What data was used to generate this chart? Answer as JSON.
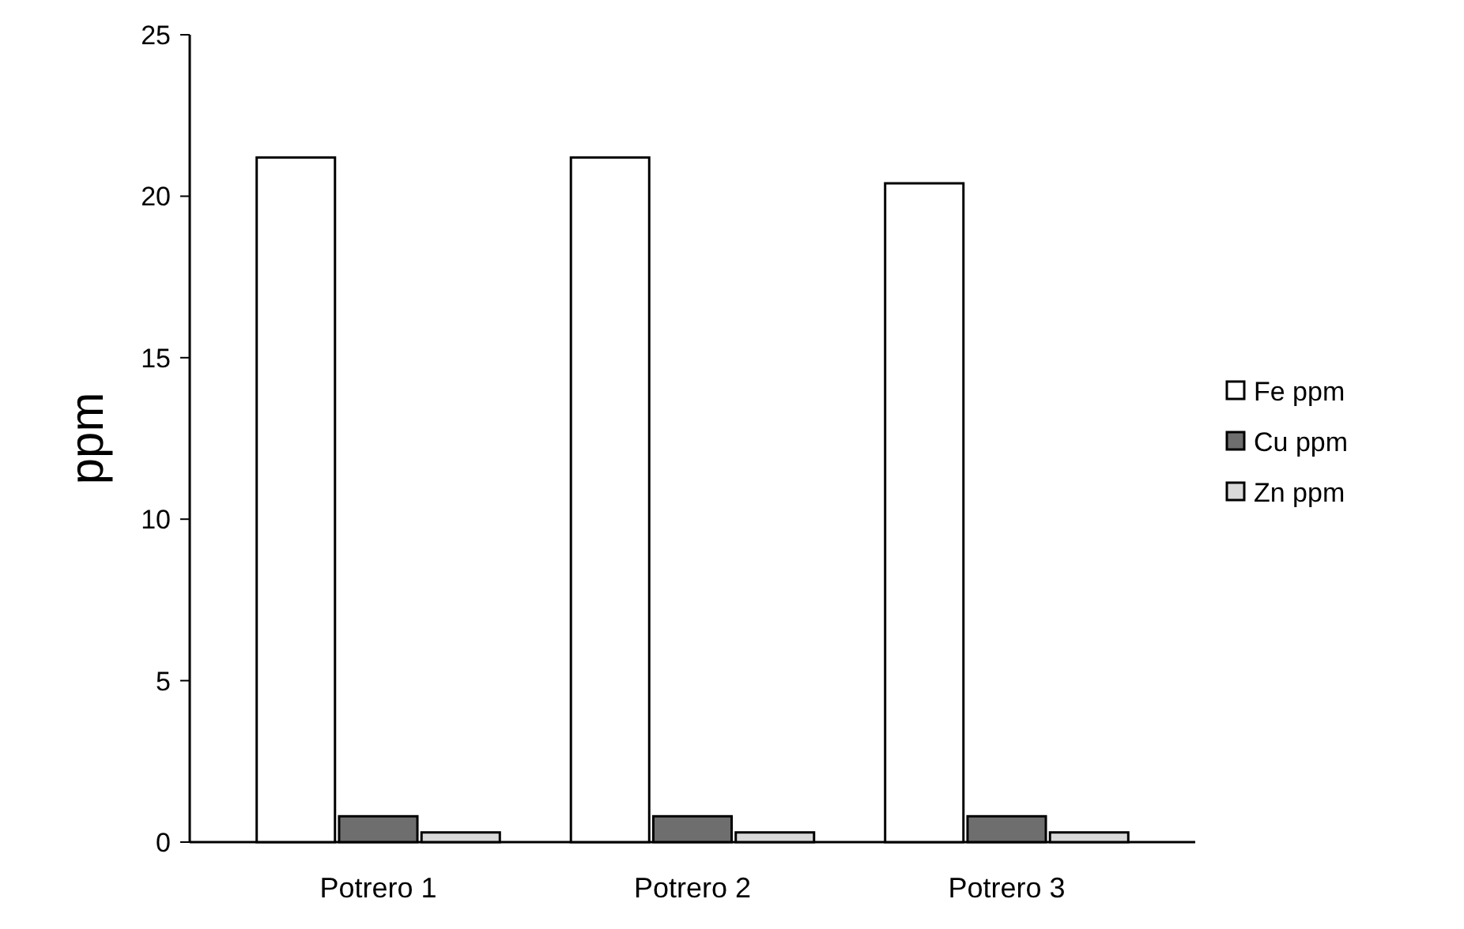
{
  "chart_data": {
    "type": "bar",
    "ylabel": "ppm",
    "categories": [
      "Potrero 1",
      "Potrero 2",
      "Potrero 3"
    ],
    "series": [
      {
        "name": "Fe ppm",
        "color": "#ffffff",
        "values": [
          21.2,
          21.2,
          20.4
        ]
      },
      {
        "name": "Cu ppm",
        "color": "#6e6e6e",
        "values": [
          0.8,
          0.8,
          0.8
        ]
      },
      {
        "name": "Zn ppm",
        "color": "#d9d9d9",
        "values": [
          0.3,
          0.3,
          0.3
        ]
      }
    ],
    "ylim": [
      0,
      25
    ],
    "yticks": [
      0,
      5,
      10,
      15,
      20,
      25
    ],
    "legend": "right",
    "grid": false
  }
}
